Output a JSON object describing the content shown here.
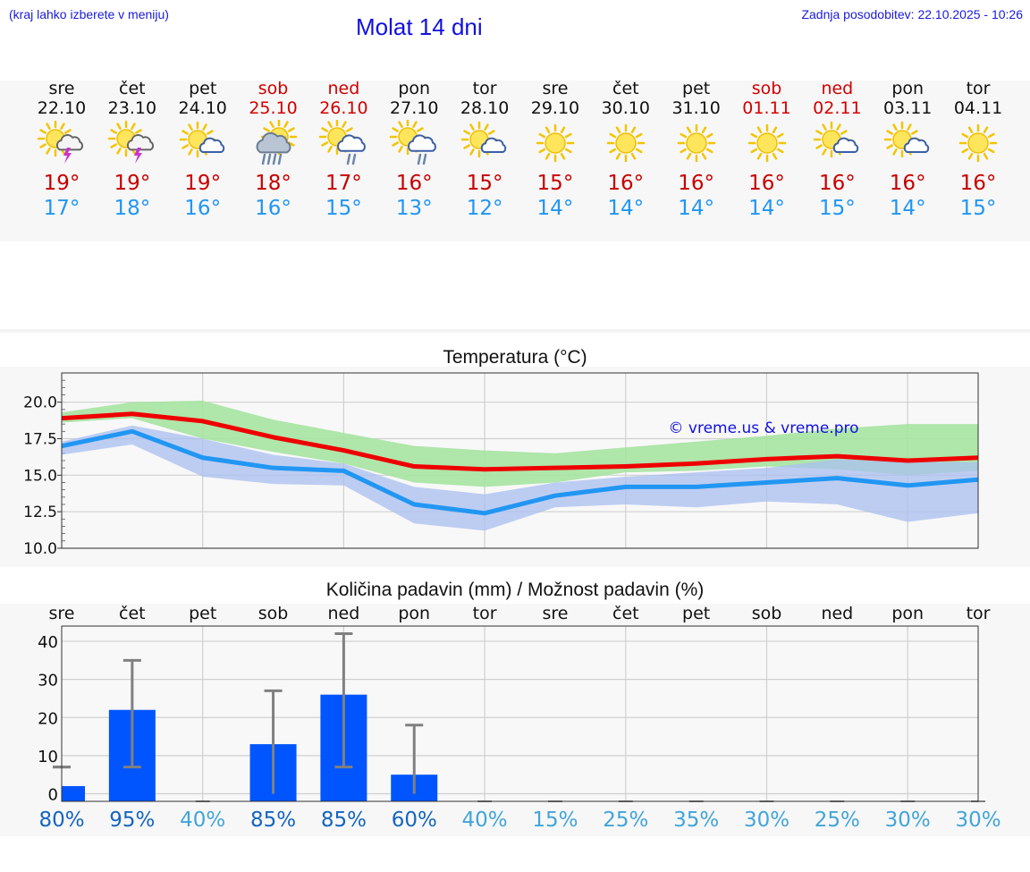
{
  "header": {
    "note": "(kraj lahko izberete v meniju)",
    "title": "Molat 14 dni",
    "updated": "Zadnja posodobitev: 22.10.2025 - 10:26"
  },
  "days": [
    {
      "name": "sre",
      "date": "22.10",
      "weekend": false,
      "icon": "sun-cloud-thunder-icon",
      "max": "19°",
      "min": "17°"
    },
    {
      "name": "čet",
      "date": "23.10",
      "weekend": false,
      "icon": "sun-cloud-thunder-icon",
      "max": "19°",
      "min": "18°"
    },
    {
      "name": "pet",
      "date": "24.10",
      "weekend": false,
      "icon": "sun-small-cloud-icon",
      "max": "19°",
      "min": "16°"
    },
    {
      "name": "sob",
      "date": "25.10",
      "weekend": true,
      "icon": "sun-cloud-heavy-rain-icon",
      "max": "18°",
      "min": "16°"
    },
    {
      "name": "ned",
      "date": "26.10",
      "weekend": true,
      "icon": "sun-cloud-rain-icon",
      "max": "17°",
      "min": "15°"
    },
    {
      "name": "pon",
      "date": "27.10",
      "weekend": false,
      "icon": "sun-cloud-rain-icon",
      "max": "16°",
      "min": "13°"
    },
    {
      "name": "tor",
      "date": "28.10",
      "weekend": false,
      "icon": "sun-small-cloud-icon",
      "max": "15°",
      "min": "12°"
    },
    {
      "name": "sre",
      "date": "29.10",
      "weekend": false,
      "icon": "sun-icon",
      "max": "15°",
      "min": "14°"
    },
    {
      "name": "čet",
      "date": "30.10",
      "weekend": false,
      "icon": "sun-icon",
      "max": "16°",
      "min": "14°"
    },
    {
      "name": "pet",
      "date": "31.10",
      "weekend": false,
      "icon": "sun-icon",
      "max": "16°",
      "min": "14°"
    },
    {
      "name": "sob",
      "date": "01.11",
      "weekend": true,
      "icon": "sun-icon",
      "max": "16°",
      "min": "14°"
    },
    {
      "name": "ned",
      "date": "02.11",
      "weekend": true,
      "icon": "sun-small-cloud-icon",
      "max": "16°",
      "min": "15°"
    },
    {
      "name": "pon",
      "date": "03.11",
      "weekend": false,
      "icon": "sun-small-cloud-icon",
      "max": "16°",
      "min": "14°"
    },
    {
      "name": "tor",
      "date": "04.11",
      "weekend": false,
      "icon": "sun-icon",
      "max": "16°",
      "min": "15°"
    }
  ],
  "colors": {
    "max_line": "#ee0000",
    "min_line": "#2196f3",
    "max_band": "#a6e3a1",
    "min_band": "#a9bff0",
    "overlap_band": "#7fc4a0",
    "precip_bar": "#0055ff",
    "whisker": "#808080",
    "weekend": "#d10000",
    "pct_dark": "#1565c0",
    "pct_light": "#42a5d9"
  },
  "chart_data": [
    {
      "type": "line",
      "title": "Temperatura (°C)",
      "watermark": "© vreme.us & vreme.pro",
      "ylim": [
        10,
        22
      ],
      "yticks": [
        10.0,
        12.5,
        15.0,
        17.5,
        20.0
      ],
      "ytick_labels": [
        "10.0",
        "12.5",
        "15.0",
        "17.5",
        "20.0"
      ],
      "grid": true,
      "series": [
        {
          "role": "max",
          "values": [
            18.9,
            19.2,
            18.7,
            17.6,
            16.7,
            15.6,
            15.4,
            15.5,
            15.6,
            15.8,
            16.1,
            16.3,
            16.0,
            16.2
          ]
        },
        {
          "role": "max_upper",
          "values": [
            19.3,
            20.0,
            20.1,
            18.8,
            17.9,
            17.0,
            16.7,
            16.5,
            16.9,
            17.3,
            17.7,
            18.2,
            18.5,
            18.5
          ]
        },
        {
          "role": "max_lower",
          "values": [
            18.6,
            18.9,
            17.5,
            16.6,
            15.8,
            14.5,
            14.2,
            14.5,
            15.2,
            15.3,
            15.6,
            15.4,
            15.0,
            15.3
          ]
        },
        {
          "role": "min",
          "values": [
            17.0,
            18.0,
            16.2,
            15.5,
            15.3,
            13.0,
            12.4,
            13.6,
            14.2,
            14.2,
            14.5,
            14.8,
            14.3,
            14.7
          ]
        },
        {
          "role": "min_upper",
          "values": [
            17.3,
            18.4,
            17.5,
            16.4,
            15.8,
            14.2,
            13.7,
            14.5,
            14.9,
            15.2,
            15.5,
            16.1,
            15.9,
            15.9
          ]
        },
        {
          "role": "min_lower",
          "values": [
            16.4,
            17.1,
            14.9,
            14.4,
            14.3,
            11.7,
            11.2,
            12.8,
            13.0,
            12.8,
            13.2,
            13.0,
            11.8,
            12.4
          ]
        }
      ]
    },
    {
      "type": "bar",
      "title": "Količina padavin (mm) / Možnost padavin (%)",
      "categories": [
        "sre",
        "čet",
        "pet",
        "sob",
        "ned",
        "pon",
        "tor",
        "sre",
        "čet",
        "pet",
        "sob",
        "ned",
        "pon",
        "tor"
      ],
      "ylim": [
        -2,
        44
      ],
      "yticks": [
        0,
        10,
        20,
        30,
        40
      ],
      "ytick_labels": [
        "0",
        "10",
        "20",
        "30",
        "40"
      ],
      "grid": true,
      "values": [
        2,
        22,
        0,
        13,
        26,
        5,
        0,
        0,
        0,
        0,
        0,
        0,
        0,
        0
      ],
      "err_low": [
        7,
        7,
        0,
        0,
        7,
        0,
        0,
        0,
        0,
        0,
        0,
        0,
        0,
        0
      ],
      "err_high": [
        7,
        35,
        0,
        27,
        42,
        18,
        0,
        0,
        0,
        0,
        0,
        0,
        0,
        0
      ],
      "probability": [
        "80%",
        "95%",
        "40%",
        "85%",
        "85%",
        "60%",
        "40%",
        "15%",
        "25%",
        "35%",
        "30%",
        "25%",
        "30%",
        "30%"
      ],
      "probability_dark": [
        true,
        true,
        false,
        true,
        true,
        true,
        false,
        false,
        false,
        false,
        false,
        false,
        false,
        false
      ]
    }
  ]
}
